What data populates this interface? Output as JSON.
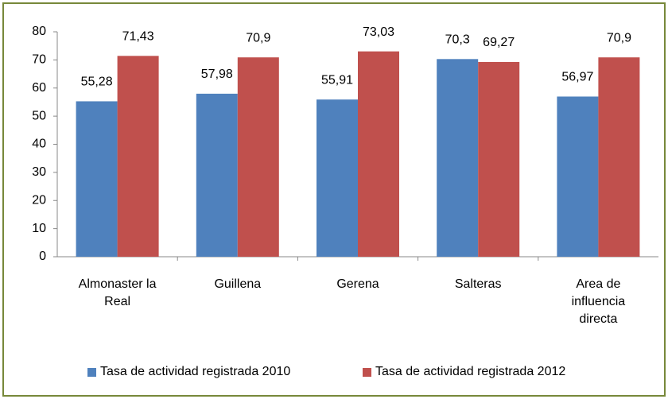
{
  "chart_data": {
    "type": "bar",
    "categories": [
      "Almonaster la Real",
      "Guillena",
      "Gerena",
      "Salteras",
      "Area de influencia directa"
    ],
    "series": [
      {
        "name": "Tasa de actividad registrada 2010",
        "color": "#4f81bd",
        "values": [
          55.28,
          57.98,
          55.91,
          70.3,
          56.97
        ],
        "value_labels": [
          "55,28",
          "57,98",
          "55,91",
          "70,3",
          "56,97"
        ]
      },
      {
        "name": "Tasa de actividad registrada 2012",
        "color": "#c0504d",
        "values": [
          71.43,
          70.9,
          73.03,
          69.27,
          70.9
        ],
        "value_labels": [
          "71,43",
          "70,9",
          "73,03",
          "69,27",
          "70,9"
        ]
      }
    ],
    "ylim": [
      0,
      80
    ],
    "yticks": [
      0,
      10,
      20,
      30,
      40,
      50,
      60,
      70,
      80
    ],
    "grid": false,
    "legend": "bottom"
  }
}
